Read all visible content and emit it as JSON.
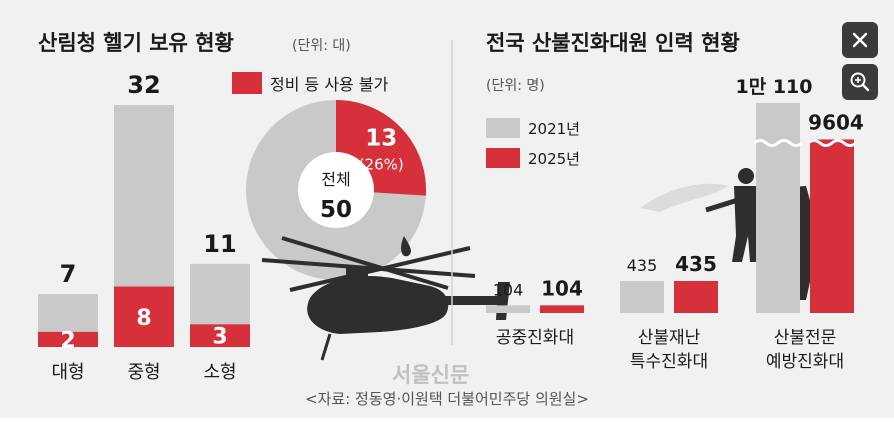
{
  "colors": {
    "background": "#f1f1f1",
    "grey_bar": "#c9c9c9",
    "red": "#d6303a",
    "text": "#1a1a1a",
    "muted": "#555555",
    "silhouette": "#2e2e2e"
  },
  "overlay_controls": {
    "close_icon": "close-icon",
    "zoom_icon": "zoom-in-icon"
  },
  "source_note": "<자료: 정동영·이원택 더불어민주당 의원실>",
  "watermark": "서울신문",
  "chart_data": [
    {
      "type": "bar",
      "title": "산림청 헬기 보유 현황",
      "unit": "(단위: 대)",
      "legend": "정비 등 사용 불가",
      "categories": [
        "대형",
        "중형",
        "소형"
      ],
      "series": [
        {
          "name": "",
          "values": [
            7,
            32,
            11
          ]
        },
        {
          "name": "정비 등 사용 불가",
          "values": [
            2,
            8,
            3
          ]
        }
      ],
      "value_labels": [
        "7",
        "32",
        "11"
      ],
      "red_labels": [
        "2",
        "8",
        "3"
      ]
    },
    {
      "type": "pie",
      "center_label": "전체",
      "center_value": "50",
      "total": 50,
      "slices": [
        {
          "name": "정비 등 사용 불가",
          "value": 13,
          "label": "13",
          "pct_label": "(26%)"
        },
        {
          "name": "",
          "value": 37
        }
      ]
    },
    {
      "type": "bar",
      "title": "전국 산불진화대원 인력 현황",
      "unit": "(단위: 명)",
      "categories": [
        "공중진화대",
        "산불재난\n특수진화대",
        "산불전문\n예방진화대"
      ],
      "series": [
        {
          "name": "2021년",
          "values": [
            104,
            435,
            10110
          ]
        },
        {
          "name": "2025년",
          "values": [
            104,
            435,
            9604
          ]
        }
      ],
      "label_2021": [
        "104",
        "435",
        "1만 110"
      ],
      "label_2025": [
        "104",
        "435",
        "9604"
      ]
    }
  ]
}
